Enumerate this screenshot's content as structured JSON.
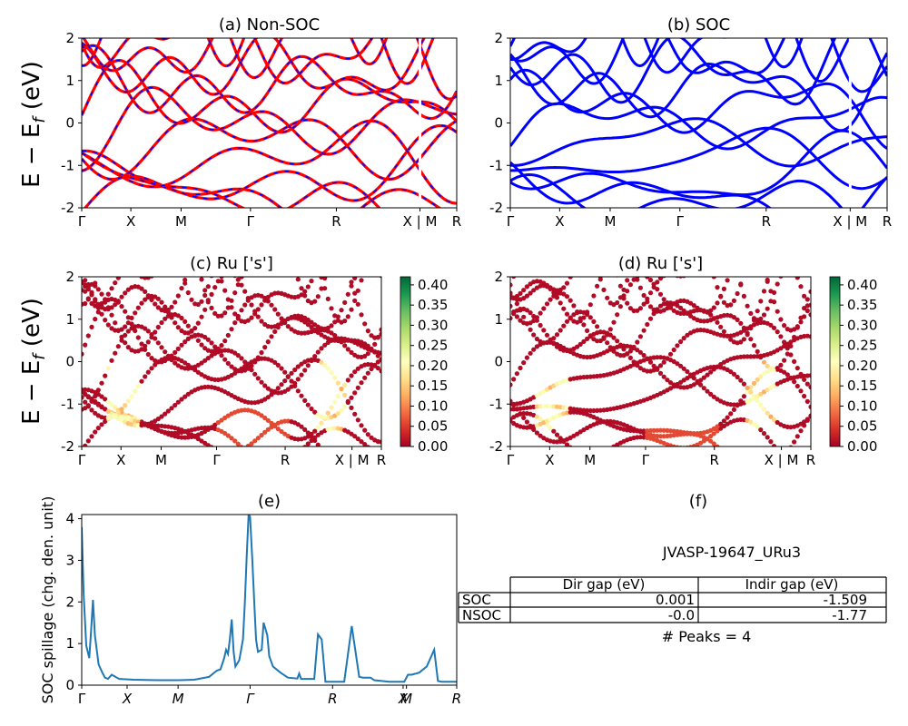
{
  "figure": {
    "suptitle": "JVASP-19647_URu3",
    "ylabel": "E − E_f (eV)",
    "ylabel_main": "E − E",
    "ylabel_sub": "f",
    "ylabel_unit": " (eV)"
  },
  "chart_data": [
    {
      "type": "line",
      "id": "a",
      "title": "(a) Non-SOC",
      "ylim": [
        -2,
        2
      ],
      "yticks": [
        -2,
        -1,
        0,
        1,
        2
      ],
      "xticks": [
        "Γ",
        "X",
        "M",
        "Γ",
        "R",
        "X | M",
        "R"
      ],
      "series": [
        {
          "color": "#ff0000",
          "style": "solid"
        },
        {
          "color": "#0000ff",
          "style": "dashed"
        }
      ]
    },
    {
      "type": "line",
      "id": "b",
      "title": "(b) SOC",
      "ylim": [
        -2,
        2
      ],
      "yticks": [
        -2,
        -1,
        0,
        1,
        2
      ],
      "xticks": [
        "Γ",
        "X",
        "M",
        "Γ",
        "R",
        "X | M",
        "R"
      ],
      "series": [
        {
          "color": "#0000ff",
          "style": "solid"
        }
      ]
    },
    {
      "type": "scatter",
      "id": "c",
      "title": "(c)  Ru ['s']",
      "ylim": [
        -2,
        2
      ],
      "yticks": [
        -2,
        -1,
        0,
        1,
        2
      ],
      "xticks": [
        "Γ",
        "X",
        "M",
        "Γ",
        "R",
        "X | M",
        "R"
      ],
      "colorbar": {
        "min": 0.0,
        "max": 0.42,
        "ticks": [
          "0.00",
          "0.05",
          "0.10",
          "0.15",
          "0.20",
          "0.25",
          "0.30",
          "0.35",
          "0.40"
        ],
        "colormap": "RdYlGn"
      }
    },
    {
      "type": "scatter",
      "id": "d",
      "title": "(d) Ru ['s']",
      "ylim": [
        -2,
        2
      ],
      "yticks": [
        -2,
        -1,
        0,
        1,
        2
      ],
      "xticks": [
        "Γ",
        "X",
        "M",
        "Γ",
        "R",
        "X | M",
        "R"
      ],
      "colorbar": {
        "min": 0.0,
        "max": 0.42,
        "ticks": [
          "0.00",
          "0.05",
          "0.10",
          "0.15",
          "0.20",
          "0.25",
          "0.30",
          "0.35",
          "0.40"
        ],
        "colormap": "RdYlGn"
      }
    },
    {
      "type": "line",
      "id": "e",
      "title": "(e)",
      "ylabel": "SOC spillage (chg. den. unit)",
      "ylim": [
        0,
        4.1
      ],
      "yticks": [
        0,
        1,
        2,
        3,
        4
      ],
      "xticks": [
        "Γ",
        "X",
        "M",
        "Γ",
        "R",
        "X",
        "M",
        "R"
      ],
      "xtick_pos": [
        0,
        0.121,
        0.257,
        0.449,
        0.669,
        0.857,
        0.866,
        1.0
      ],
      "series": [
        {
          "color": "#1f77b4",
          "x": [
            0,
            0.005,
            0.012,
            0.02,
            0.025,
            0.03,
            0.035,
            0.045,
            0.055,
            0.062,
            0.07,
            0.08,
            0.1,
            0.14,
            0.2,
            0.26,
            0.3,
            0.34,
            0.36,
            0.37,
            0.38,
            0.385,
            0.39,
            0.395,
            0.4,
            0.405,
            0.41,
            0.42,
            0.43,
            0.435,
            0.44,
            0.445,
            0.449,
            0.455,
            0.46,
            0.465,
            0.47,
            0.48,
            0.485,
            0.49,
            0.495,
            0.5,
            0.51,
            0.53,
            0.55,
            0.575,
            0.58,
            0.585,
            0.6,
            0.62,
            0.63,
            0.64,
            0.65,
            0.66,
            0.67,
            0.68,
            0.69,
            0.7,
            0.72,
            0.74,
            0.75,
            0.76,
            0.77,
            0.78,
            0.8,
            0.82,
            0.84,
            0.86,
            0.87,
            0.88,
            0.9,
            0.92,
            0.94,
            0.95,
            0.96,
            0.97,
            0.98,
            1.0
          ],
          "y": [
            3.8,
            2.2,
            0.95,
            0.65,
            1.3,
            2.05,
            1.2,
            0.5,
            0.3,
            0.18,
            0.15,
            0.25,
            0.15,
            0.13,
            0.12,
            0.12,
            0.13,
            0.2,
            0.35,
            0.38,
            0.65,
            0.85,
            0.75,
            1.1,
            1.58,
            0.8,
            0.45,
            0.6,
            1.1,
            2.0,
            3.1,
            4.1,
            4.05,
            3.0,
            2.0,
            1.1,
            0.8,
            0.85,
            1.5,
            1.35,
            1.2,
            0.7,
            0.45,
            0.3,
            0.18,
            0.16,
            0.28,
            0.15,
            0.15,
            0.15,
            1.22,
            1.1,
            0.08,
            0.08,
            0.08,
            0.08,
            0.08,
            0.08,
            1.42,
            0.2,
            0.18,
            0.18,
            0.18,
            0.12,
            0.1,
            0.08,
            0.08,
            0.08,
            0.25,
            0.25,
            0.3,
            0.45,
            0.85,
            0.1,
            0.08,
            0.08,
            0.08,
            0.08
          ]
        }
      ]
    }
  ],
  "table": {
    "title": "(f)",
    "headers": [
      "",
      "Dir gap (eV)",
      "Indir gap (eV)"
    ],
    "rows": [
      {
        "label": "SOC",
        "dir": "0.001",
        "indir": "-1.509"
      },
      {
        "label": "NSOC",
        "dir": "-0.0",
        "indir": "-1.77"
      }
    ],
    "peaks": "# Peaks = 4"
  }
}
